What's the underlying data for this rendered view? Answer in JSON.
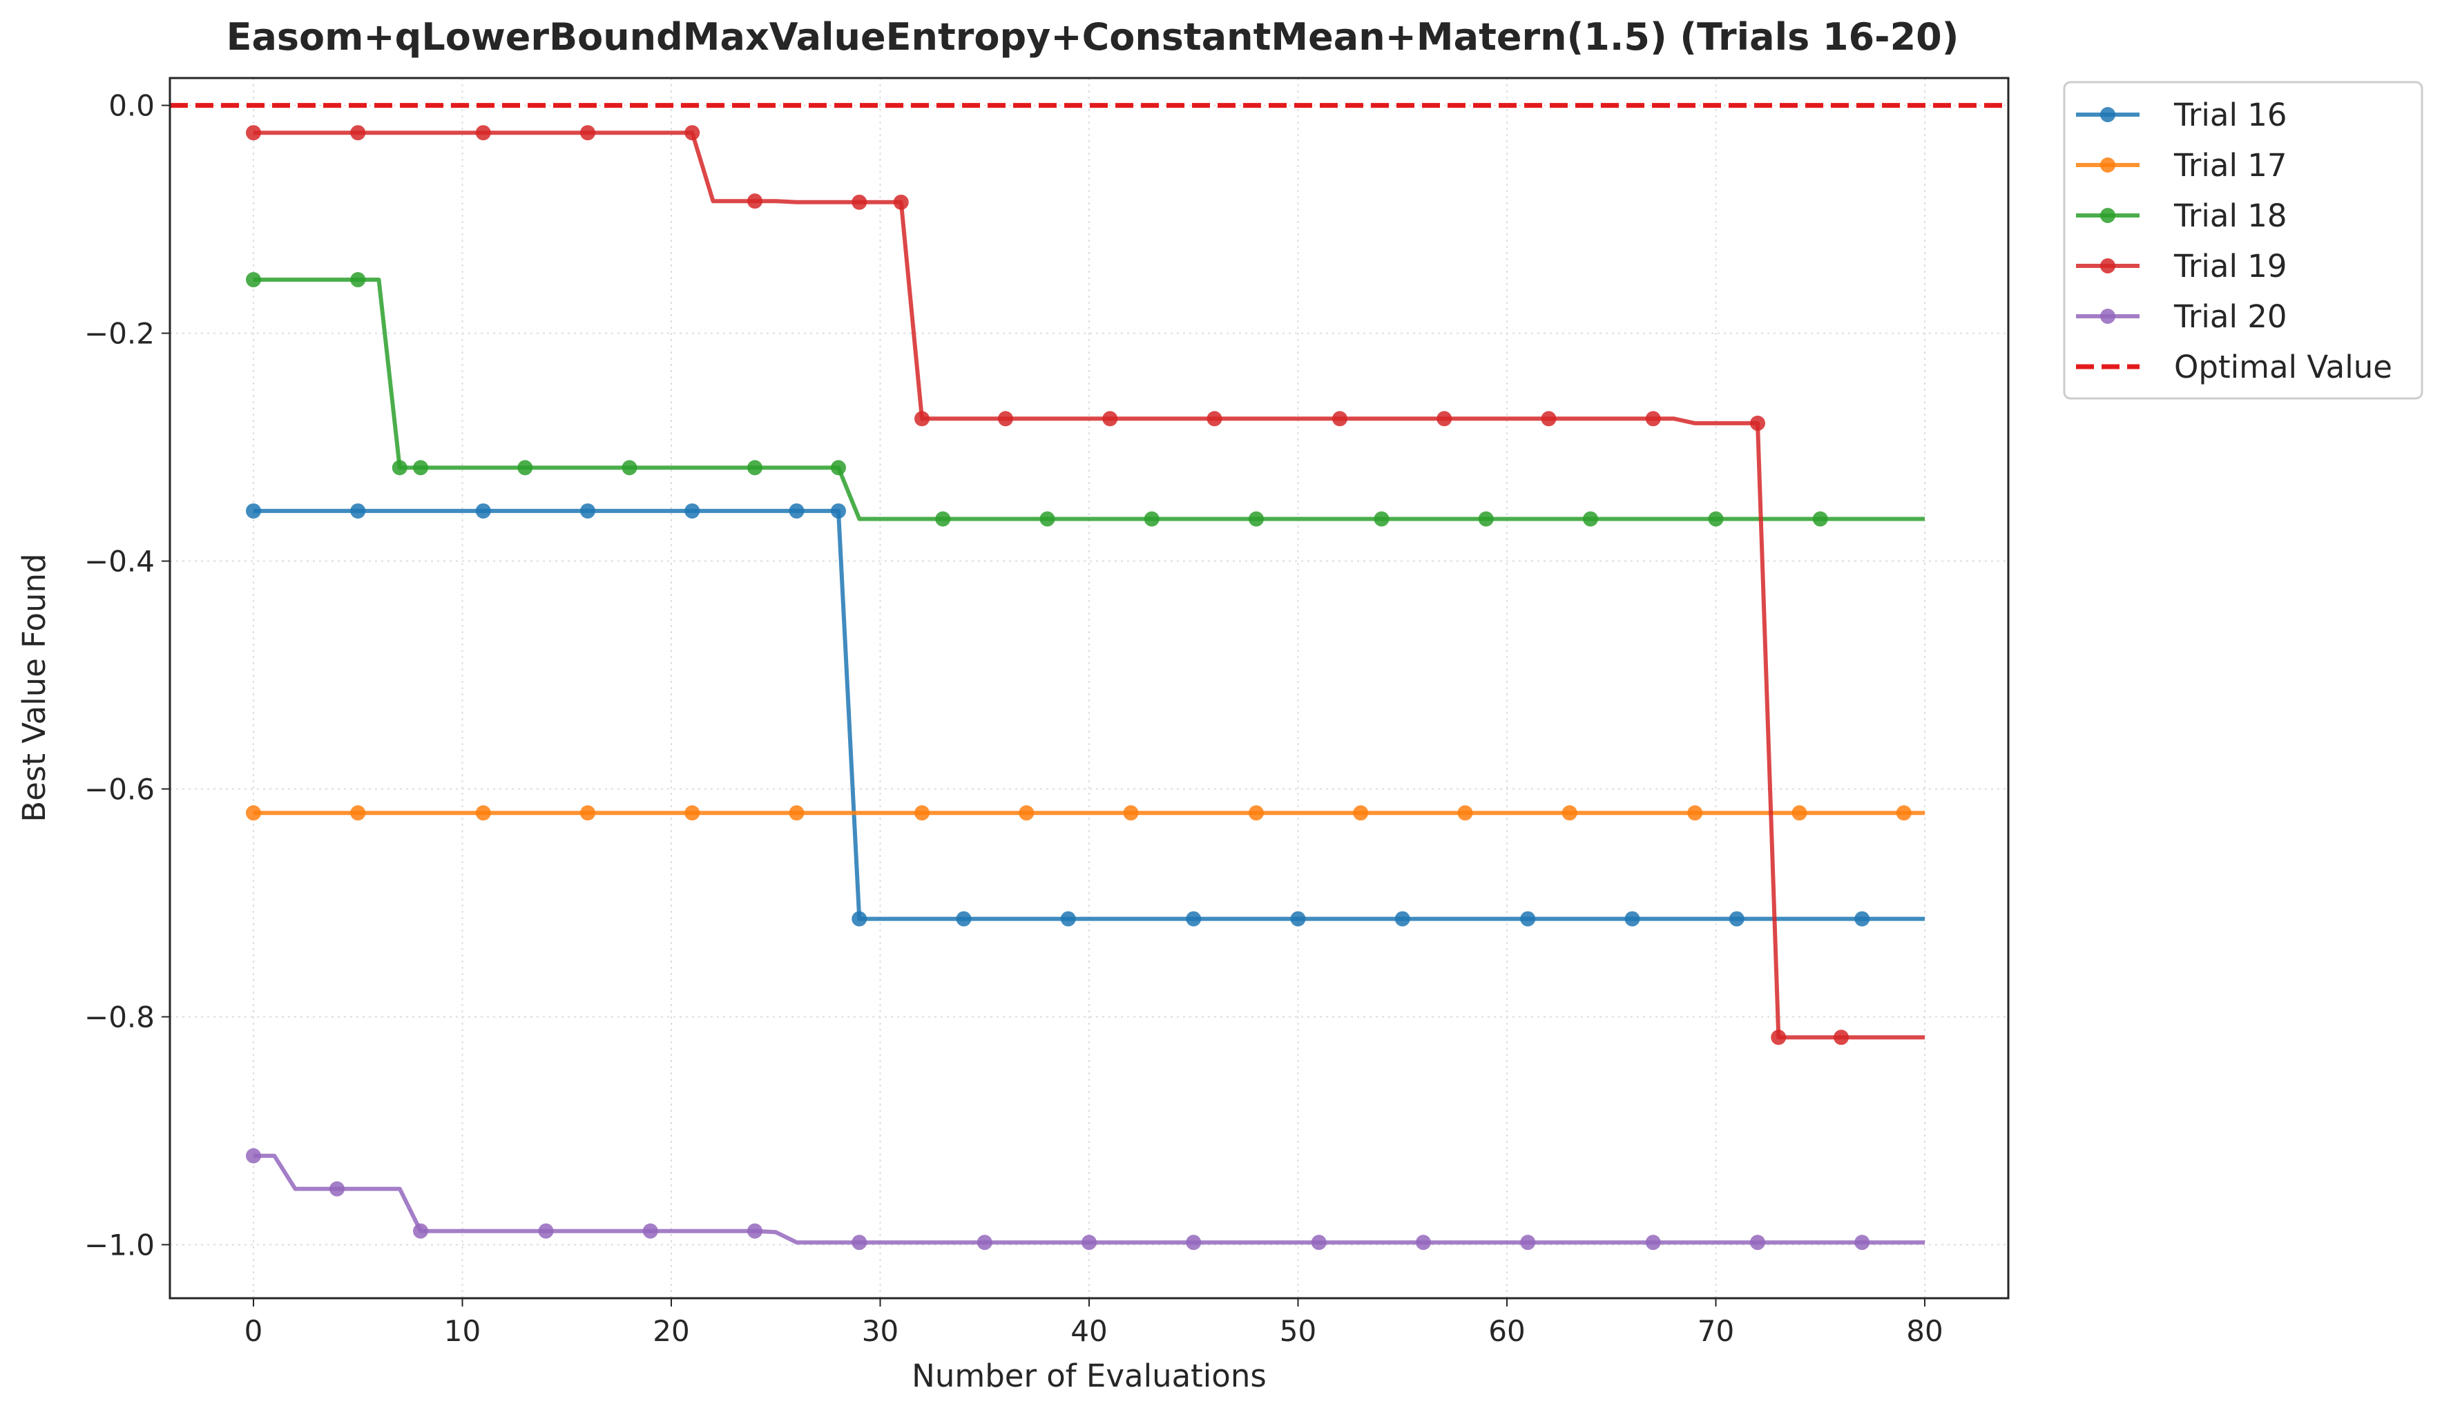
{
  "chart_data": {
    "type": "line",
    "title": "Easom+qLowerBoundMaxValueEntropy+ConstantMean+Matern(1.5) (Trials 16-20)",
    "xlabel": "Number of Evaluations",
    "ylabel": "Best Value Found",
    "xlim": [
      -4,
      84
    ],
    "ylim": [
      -1.047,
      0.024
    ],
    "xticks": [
      0,
      10,
      20,
      30,
      40,
      50,
      60,
      70,
      80
    ],
    "xtick_labels": [
      "0",
      "10",
      "20",
      "30",
      "40",
      "50",
      "60",
      "70",
      "80"
    ],
    "yticks": [
      0.0,
      -0.2,
      -0.4,
      -0.6,
      -0.8,
      -1.0
    ],
    "ytick_labels": [
      "0.0",
      "−0.2",
      "−0.4",
      "−0.6",
      "−0.8",
      "−1.0"
    ],
    "grid": true,
    "legend_position": "outside-upper-right",
    "reference_line": {
      "name": "Optimal Value",
      "y": 0.0,
      "color": "#e31a1c",
      "style": "dashed"
    },
    "series": [
      {
        "name": "Trial 16",
        "color": "#1f77b4",
        "points": [
          [
            0,
            -0.356
          ],
          [
            28,
            -0.356
          ],
          [
            29,
            -0.714
          ],
          [
            80,
            -0.714
          ]
        ],
        "markers": [
          0,
          5,
          11,
          16,
          21,
          26,
          28,
          29,
          34,
          39,
          45,
          50,
          55,
          61,
          66,
          71,
          77
        ]
      },
      {
        "name": "Trial 17",
        "color": "#ff7f0e",
        "points": [
          [
            0,
            -0.621
          ],
          [
            80,
            -0.621
          ]
        ],
        "markers": [
          0,
          5,
          11,
          16,
          21,
          26,
          32,
          37,
          42,
          48,
          53,
          58,
          63,
          69,
          74,
          79
        ]
      },
      {
        "name": "Trial 18",
        "color": "#2ca02c",
        "points": [
          [
            0,
            -0.153
          ],
          [
            6,
            -0.153
          ],
          [
            7,
            -0.318
          ],
          [
            28,
            -0.318
          ],
          [
            29,
            -0.363
          ],
          [
            80,
            -0.363
          ]
        ],
        "markers": [
          0,
          5,
          7,
          8,
          13,
          18,
          24,
          28,
          33,
          38,
          43,
          48,
          54,
          59,
          64,
          70,
          75
        ]
      },
      {
        "name": "Trial 19",
        "color": "#d62728",
        "points": [
          [
            0,
            -0.024
          ],
          [
            21,
            -0.024
          ],
          [
            22,
            -0.084
          ],
          [
            25,
            -0.084
          ],
          [
            26,
            -0.085
          ],
          [
            31,
            -0.085
          ],
          [
            32,
            -0.275
          ],
          [
            67,
            -0.275
          ],
          [
            68,
            -0.275
          ],
          [
            69,
            -0.279
          ],
          [
            72,
            -0.279
          ],
          [
            73,
            -0.818
          ],
          [
            80,
            -0.818
          ]
        ],
        "markers": [
          0,
          5,
          11,
          16,
          21,
          24,
          29,
          31,
          32,
          36,
          41,
          46,
          52,
          57,
          62,
          67,
          72,
          73,
          76
        ]
      },
      {
        "name": "Trial 20",
        "color": "#9467bd",
        "points": [
          [
            0,
            -0.922
          ],
          [
            1,
            -0.922
          ],
          [
            2,
            -0.951
          ],
          [
            7,
            -0.951
          ],
          [
            8,
            -0.988
          ],
          [
            24,
            -0.988
          ],
          [
            25,
            -0.989
          ],
          [
            26,
            -0.998
          ],
          [
            80,
            -0.998
          ]
        ],
        "markers": [
          0,
          4,
          8,
          14,
          19,
          24,
          29,
          35,
          40,
          45,
          51,
          56,
          61,
          67,
          72,
          77
        ]
      }
    ]
  }
}
